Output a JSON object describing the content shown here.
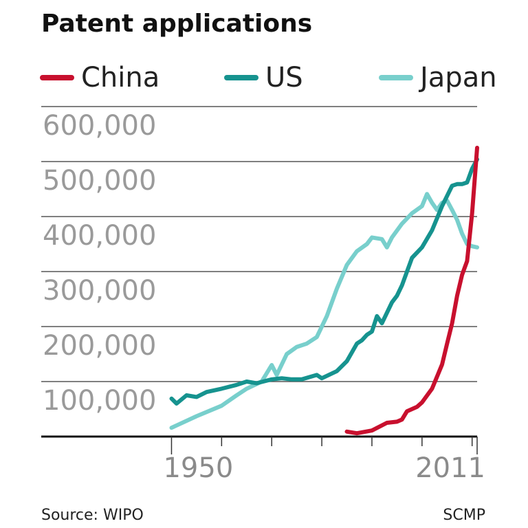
{
  "chart_data": {
    "type": "line",
    "title": "Patent applications",
    "series": [
      {
        "name": "China",
        "color": "#c8102e",
        "x": [
          1985,
          1987,
          1990,
          1993,
          1995,
          1996,
          1997,
          1999,
          2000,
          2002,
          2004,
          2005,
          2006,
          2007,
          2008,
          2009,
          2010,
          2011
        ],
        "values": [
          9000,
          6000,
          11000,
          25000,
          27000,
          31000,
          46000,
          54000,
          62000,
          87000,
          131000,
          169000,
          206000,
          256000,
          294000,
          319000,
          406000,
          525000
        ]
      },
      {
        "name": "US",
        "color": "#16938f",
        "x": [
          1950,
          1951,
          1953,
          1955,
          1957,
          1960,
          1963,
          1965,
          1967,
          1970,
          1972,
          1974,
          1976,
          1979,
          1980,
          1983,
          1985,
          1987,
          1988,
          1989,
          1990,
          1991,
          1992,
          1994,
          1995,
          1996,
          1998,
          2000,
          2002,
          2004,
          2006,
          2007,
          2008,
          2009,
          2010,
          2011
        ],
        "values": [
          69000,
          60000,
          75000,
          72000,
          81000,
          87000,
          94000,
          100000,
          97000,
          104000,
          106000,
          104000,
          104000,
          112000,
          106000,
          119000,
          137000,
          169000,
          175000,
          185000,
          191000,
          219000,
          206000,
          244000,
          256000,
          275000,
          325000,
          344000,
          375000,
          419000,
          456000,
          459000,
          459000,
          462000,
          487000,
          504000
        ]
      },
      {
        "name": "Japan",
        "color": "#78cfcc",
        "x": [
          1950,
          1955,
          1960,
          1963,
          1965,
          1968,
          1970,
          1971,
          1973,
          1975,
          1977,
          1979,
          1981,
          1983,
          1985,
          1987,
          1989,
          1990,
          1992,
          1993,
          1994,
          1996,
          1998,
          2000,
          2001,
          2002,
          2003,
          2004,
          2005,
          2006,
          2007,
          2008,
          2009,
          2010,
          2011
        ],
        "values": [
          16000,
          37000,
          56000,
          75000,
          87000,
          100000,
          130000,
          112000,
          150000,
          163000,
          169000,
          181000,
          219000,
          269000,
          312000,
          337000,
          350000,
          362000,
          359000,
          344000,
          362000,
          387000,
          406000,
          419000,
          441000,
          425000,
          412000,
          425000,
          429000,
          412000,
          394000,
          369000,
          350000,
          346000,
          344000
        ]
      }
    ],
    "xlim": [
      1924,
      2011
    ],
    "xticks": [
      1950,
      2011
    ],
    "xminor_ticks": [
      1960,
      1970,
      1980,
      1990,
      2000,
      2010
    ],
    "ylim": [
      0,
      600000
    ],
    "yticks": [
      {
        "value": 100000,
        "label": "100,000"
      },
      {
        "value": 200000,
        "label": "200,000"
      },
      {
        "value": 300000,
        "label": "300,000"
      },
      {
        "value": 400000,
        "label": "400,000"
      },
      {
        "value": 500000,
        "label": "500,000"
      },
      {
        "value": 600000,
        "label": "600,000"
      }
    ],
    "grid": true,
    "source": "Source: WIPO",
    "credit": "SCMP"
  }
}
